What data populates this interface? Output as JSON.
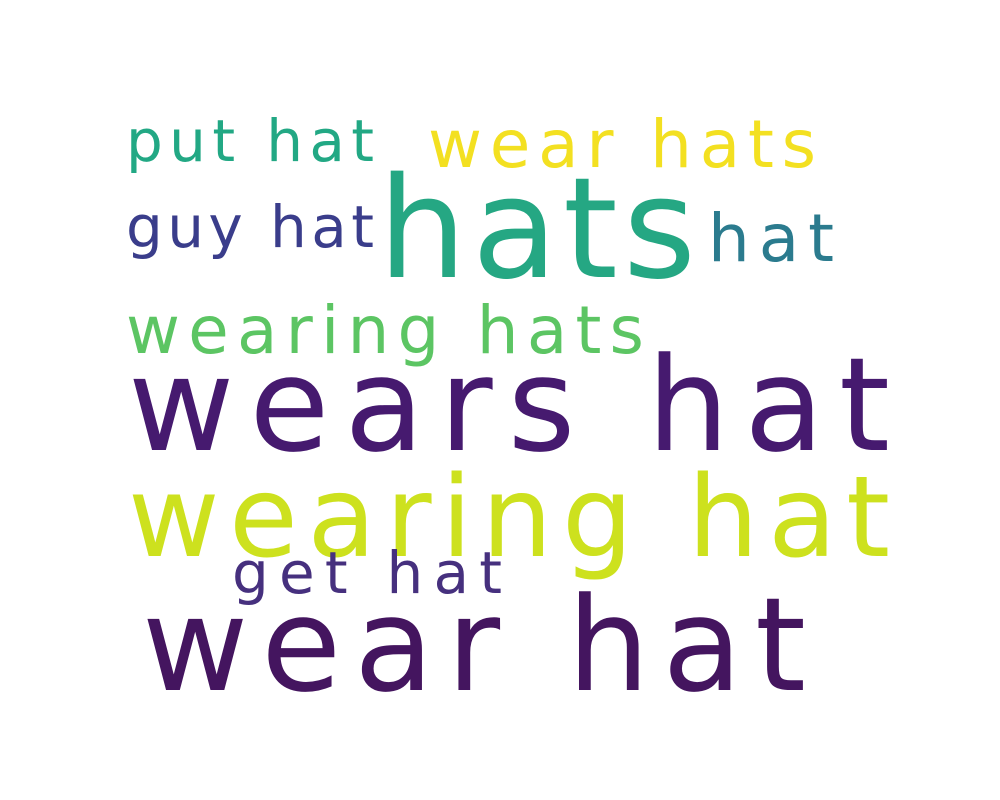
{
  "words": [
    {
      "text": "put hat",
      "color": "#22a884"
    },
    {
      "text": "wear hats",
      "color": "#f3e021"
    },
    {
      "text": "guy hat",
      "color": "#3a3d8b"
    },
    {
      "text": "hats",
      "color": "#25a783"
    },
    {
      "text": "hat",
      "color": "#2b7b8e"
    },
    {
      "text": "wearing hats",
      "color": "#5cc563"
    },
    {
      "text": "wears hat",
      "color": "#461a6f"
    },
    {
      "text": "wearing hat",
      "color": "#cde11e"
    },
    {
      "text": "get hat",
      "color": "#46307e"
    },
    {
      "text": "wear hat",
      "color": "#44155f"
    }
  ]
}
